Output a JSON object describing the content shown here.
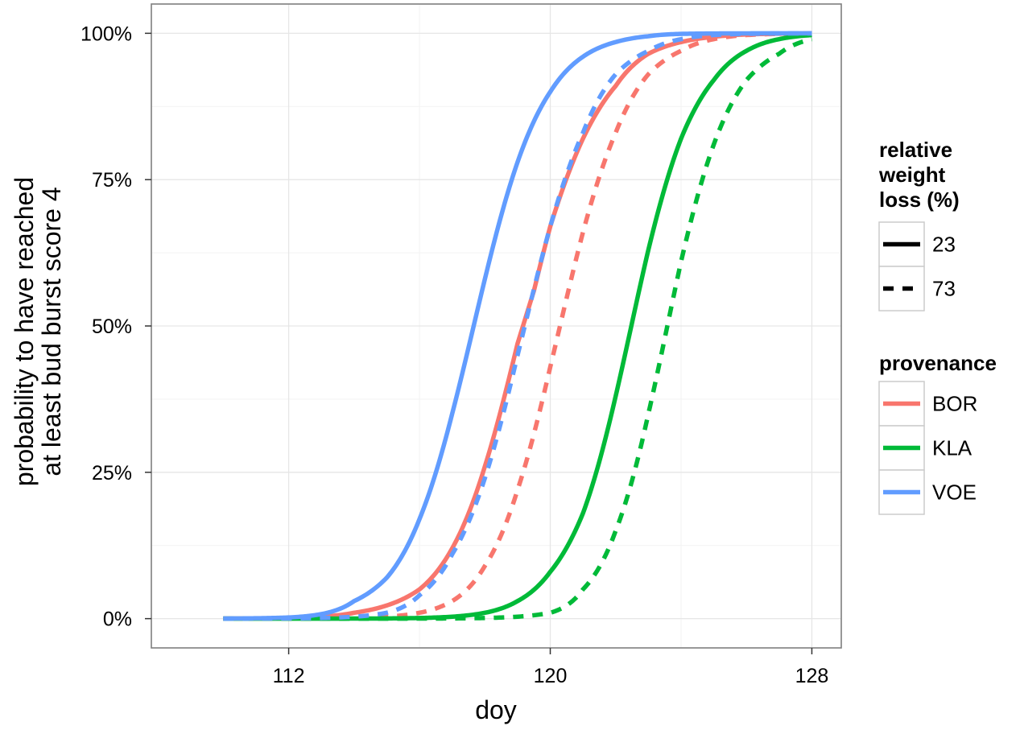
{
  "chart_data": {
    "type": "line",
    "xlabel": "doy",
    "ylabel_lines": [
      "probability to have reached",
      "at least bud burst score 4"
    ],
    "xlim": [
      107.8,
      128.9
    ],
    "ylim": [
      -0.05,
      1.05
    ],
    "x_ticks": [
      112,
      120,
      128
    ],
    "y_ticks": [
      0,
      0.25,
      0.5,
      0.75,
      1.0
    ],
    "y_tick_labels": [
      "0%",
      "25%",
      "50%",
      "75%",
      "100%"
    ],
    "grid": true,
    "curve_domain": [
      110,
      128
    ],
    "legend_position": "right",
    "legends": [
      {
        "title_lines": [
          "relative",
          "weight",
          "loss (%)"
        ],
        "entries": [
          {
            "label": "23",
            "linetype": "solid"
          },
          {
            "label": "73",
            "linetype": "dashed"
          }
        ]
      },
      {
        "title_lines": [
          "provenance"
        ],
        "entries": [
          {
            "label": "BOR",
            "color": "#F8766D"
          },
          {
            "label": "KLA",
            "color": "#00BA38"
          },
          {
            "label": "VOE",
            "color": "#619CFF"
          }
        ]
      }
    ],
    "series": [
      {
        "provenance": "BOR",
        "weight_loss": "23",
        "color": "#F8766D",
        "linetype": "solid",
        "x": [
          114,
          116,
          117,
          118,
          119,
          119.5,
          120,
          121,
          122,
          123,
          124,
          125,
          126
        ],
        "y": [
          0.01,
          0.05,
          0.12,
          0.26,
          0.47,
          0.56,
          0.67,
          0.82,
          0.91,
          0.965,
          0.985,
          0.994,
          0.998
        ]
      },
      {
        "provenance": "BOR",
        "weight_loss": "73",
        "color": "#F8766D",
        "linetype": "dashed",
        "x": [
          116,
          117,
          118,
          119,
          120,
          121,
          122,
          123,
          124,
          125,
          126,
          127
        ],
        "y": [
          0.01,
          0.03,
          0.09,
          0.22,
          0.43,
          0.66,
          0.83,
          0.93,
          0.97,
          0.99,
          0.997,
          0.999
        ]
      },
      {
        "provenance": "KLA",
        "weight_loss": "23",
        "color": "#00BA38",
        "linetype": "solid",
        "x": [
          118,
          119,
          120,
          121,
          122,
          123,
          124,
          125,
          126,
          127,
          128
        ],
        "y": [
          0.01,
          0.03,
          0.08,
          0.18,
          0.38,
          0.63,
          0.82,
          0.92,
          0.97,
          0.99,
          0.997
        ]
      },
      {
        "provenance": "KLA",
        "weight_loss": "73",
        "color": "#00BA38",
        "linetype": "dashed",
        "x": [
          120,
          121,
          122,
          123,
          124,
          125,
          126,
          127,
          128
        ],
        "y": [
          0.01,
          0.05,
          0.15,
          0.35,
          0.61,
          0.81,
          0.92,
          0.965,
          0.99
        ]
      },
      {
        "provenance": "VOE",
        "weight_loss": "23",
        "color": "#619CFF",
        "linetype": "solid",
        "x": [
          112,
          114,
          115,
          116,
          117,
          118,
          119,
          120,
          121,
          122,
          123,
          124
        ],
        "y": [
          0.002,
          0.03,
          0.07,
          0.17,
          0.35,
          0.58,
          0.78,
          0.9,
          0.96,
          0.985,
          0.995,
          0.999
        ]
      },
      {
        "provenance": "VOE",
        "weight_loss": "73",
        "color": "#619CFF",
        "linetype": "dashed",
        "x": [
          115,
          116,
          117,
          118,
          119,
          120,
          121,
          122,
          123,
          124,
          125
        ],
        "y": [
          0.01,
          0.04,
          0.11,
          0.24,
          0.45,
          0.67,
          0.83,
          0.93,
          0.97,
          0.99,
          0.997
        ]
      }
    ]
  }
}
